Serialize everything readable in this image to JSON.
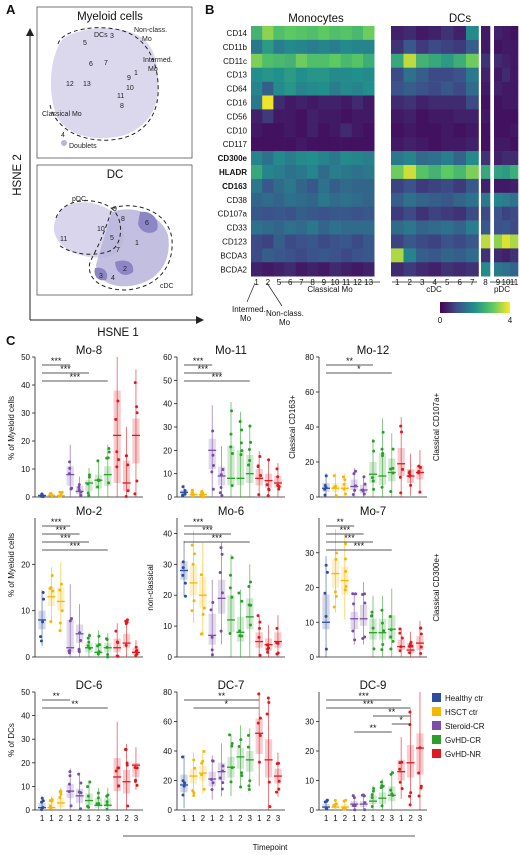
{
  "colors": {
    "Healthy ctr": "#2c4da0",
    "HSCT ctr": "#f5b800",
    "Steroid-CR": "#7a4da8",
    "GvHD-CR": "#2aa02a",
    "GvHD-NR": "#e0181f",
    "tsne_fill": "#b8b4dc",
    "tsne_dark": "#8c86c4"
  },
  "panelA": {
    "label": "A",
    "myeloid": {
      "title": "Myeloid cells",
      "clusters": [
        "5",
        "DCs",
        "3",
        "Non-class.",
        "Mo",
        "Intermed.",
        "Mo",
        "6",
        "7",
        "1",
        "9",
        "10",
        "12",
        "13",
        "11",
        "8",
        "Classical Mo",
        "4",
        "Doublets"
      ]
    },
    "dc": {
      "title": "DC",
      "clusters": [
        "pDC",
        "9",
        "8",
        "6",
        "10",
        "11",
        "5",
        "1",
        "7",
        "2",
        "3",
        "4",
        "cDC"
      ]
    },
    "ylabel": "HSNE 2",
    "xlabel": "HSNE 1"
  },
  "panelB": {
    "label": "B",
    "group_monocytes": "Monocytes",
    "group_dcs": "DCs",
    "markers": [
      "CD14",
      "CD11b",
      "CD11c",
      "CD13",
      "CD64",
      "CD16",
      "CD56",
      "CD10",
      "CD117",
      "CD300e",
      "HLADR",
      "CD163",
      "CD38",
      "CD107a",
      "CD33",
      "CD123",
      "BCDA3",
      "BCDA2"
    ],
    "bold_markers": [
      "CD300e",
      "HLADR",
      "CD163"
    ],
    "mono_cols": [
      "1",
      "2",
      "5",
      "6",
      "7",
      "8",
      "9",
      "10",
      "11",
      "12",
      "13"
    ],
    "dc_cols_a": [
      "1",
      "2",
      "3",
      "4",
      "5",
      "6",
      "7"
    ],
    "dc_cols_b": [
      "8"
    ],
    "dc_cols_c": [
      "9",
      "10",
      "11"
    ],
    "under_classical": "Classical Mo",
    "under_cdc": "cDC",
    "under_pdc": "pDC",
    "under_intermed_1": "Intermed.",
    "under_intermed_2": "Mo",
    "under_nonclass_1": "Non-class.",
    "under_nonclass_2": "Mo",
    "colorbar_min": "0",
    "colorbar_max": "4",
    "mono_values": [
      [
        2.6,
        3.3,
        2.8,
        3.0,
        2.9,
        2.8,
        3.0,
        2.8,
        2.9,
        2.7,
        3.1
      ],
      [
        1.6,
        2.2,
        1.7,
        1.9,
        1.8,
        1.7,
        1.8,
        1.7,
        1.9,
        1.8,
        1.8
      ],
      [
        3.2,
        2.8,
        2.7,
        2.6,
        3.1,
        2.8,
        2.8,
        3.0,
        2.7,
        2.9,
        2.5
      ],
      [
        2.0,
        2.1,
        2.0,
        2.2,
        2.0,
        2.1,
        2.1,
        1.9,
        1.9,
        2.0,
        1.9
      ],
      [
        1.8,
        1.2,
        1.9,
        2.1,
        1.8,
        1.9,
        2.0,
        1.7,
        1.9,
        1.8,
        2.0
      ],
      [
        1.6,
        3.9,
        0.5,
        0.3,
        0.4,
        0.3,
        0.4,
        0.4,
        0.3,
        0.5,
        0.3
      ],
      [
        0.4,
        0.7,
        0.3,
        0.3,
        0.2,
        0.4,
        0.3,
        0.3,
        0.2,
        0.3,
        0.3
      ],
      [
        0.3,
        0.2,
        0.2,
        0.3,
        0.2,
        0.4,
        0.2,
        0.3,
        0.5,
        0.3,
        0.2
      ],
      [
        0.2,
        0.2,
        0.2,
        0.2,
        0.3,
        0.2,
        0.2,
        0.2,
        0.2,
        0.2,
        0.2
      ],
      [
        1.8,
        1.5,
        1.9,
        1.7,
        1.9,
        2.0,
        1.8,
        1.6,
        1.9,
        1.8,
        1.7
      ],
      [
        2.4,
        1.8,
        1.7,
        1.5,
        1.6,
        1.8,
        1.4,
        1.7,
        1.6,
        1.5,
        1.6
      ],
      [
        1.6,
        1.1,
        1.4,
        1.6,
        1.3,
        1.1,
        1.5,
        1.2,
        1.4,
        1.3,
        1.3
      ],
      [
        1.3,
        1.4,
        1.3,
        1.5,
        1.4,
        1.3,
        1.6,
        1.4,
        1.5,
        1.4,
        1.3
      ],
      [
        1.1,
        1.0,
        1.1,
        1.0,
        1.2,
        1.1,
        1.0,
        1.1,
        1.1,
        1.0,
        1.1
      ],
      [
        1.5,
        1.4,
        1.3,
        1.5,
        1.4,
        1.6,
        1.3,
        1.5,
        1.4,
        1.4,
        1.4
      ],
      [
        0.9,
        0.8,
        1.2,
        0.9,
        1.0,
        1.1,
        0.9,
        1.0,
        1.1,
        0.9,
        1.1
      ],
      [
        0.9,
        1.2,
        1.1,
        1.0,
        0.9,
        1.0,
        1.1,
        1.0,
        0.9,
        1.0,
        1.1
      ],
      [
        0.4,
        0.3,
        0.4,
        0.5,
        0.3,
        0.4,
        0.3,
        0.5,
        0.4,
        0.3,
        0.4
      ]
    ],
    "dc_values": [
      [
        0.4,
        0.5,
        0.3,
        0.4,
        0.6,
        0.4,
        1.9,
        0.3,
        0.4,
        0.3,
        0.2
      ],
      [
        0.6,
        1.1,
        0.7,
        0.9,
        0.8,
        0.7,
        1.2,
        0.3,
        0.2,
        0.3,
        0.3
      ],
      [
        2.4,
        3.6,
        2.6,
        2.4,
        2.2,
        2.5,
        3.1,
        0.6,
        0.5,
        0.4,
        0.3
      ],
      [
        0.9,
        1.5,
        1.2,
        0.9,
        0.9,
        1.0,
        1.6,
        0.4,
        0.3,
        0.5,
        0.3
      ],
      [
        1.0,
        1.2,
        1.0,
        0.9,
        1.1,
        0.9,
        1.4,
        0.3,
        0.4,
        0.3,
        0.3
      ],
      [
        0.5,
        0.6,
        0.4,
        0.5,
        0.5,
        0.5,
        0.9,
        0.2,
        0.2,
        0.3,
        0.3
      ],
      [
        0.3,
        0.4,
        0.2,
        0.3,
        0.3,
        0.4,
        0.4,
        0.3,
        0.2,
        0.2,
        0.2
      ],
      [
        0.2,
        0.3,
        0.2,
        0.2,
        0.3,
        0.2,
        0.3,
        0.2,
        0.2,
        0.2,
        0.3
      ],
      [
        0.3,
        0.4,
        0.3,
        0.2,
        0.3,
        0.3,
        0.4,
        0.2,
        0.3,
        0.3,
        0.2
      ],
      [
        1.6,
        1.8,
        1.4,
        1.5,
        1.7,
        1.3,
        1.9,
        0.6,
        0.4,
        0.5,
        0.5
      ],
      [
        3.1,
        3.7,
        2.9,
        2.6,
        3.0,
        2.7,
        3.2,
        2.4,
        2.3,
        2.2,
        2.5
      ],
      [
        0.8,
        1.0,
        0.7,
        0.8,
        0.9,
        0.7,
        1.1,
        0.4,
        0.3,
        0.3,
        0.4
      ],
      [
        1.2,
        1.5,
        1.3,
        1.2,
        1.1,
        1.3,
        1.5,
        1.6,
        1.8,
        1.7,
        1.5
      ],
      [
        0.7,
        0.9,
        0.6,
        0.8,
        0.7,
        0.6,
        0.9,
        0.9,
        1.0,
        0.8,
        0.9
      ],
      [
        1.4,
        1.6,
        1.3,
        1.4,
        1.5,
        1.3,
        1.7,
        1.1,
        1.0,
        1.1,
        0.9
      ],
      [
        0.8,
        1.1,
        0.9,
        0.8,
        1.0,
        0.9,
        1.1,
        3.6,
        3.3,
        3.8,
        3.5
      ],
      [
        3.5,
        1.8,
        1.2,
        1.1,
        1.3,
        1.2,
        1.4,
        0.6,
        0.5,
        0.4,
        0.6
      ],
      [
        0.5,
        0.7,
        0.5,
        0.4,
        0.6,
        0.5,
        0.6,
        1.9,
        1.6,
        1.5,
        1.3
      ]
    ]
  },
  "panelC": {
    "label": "C",
    "legend": [
      "Healthy ctr",
      "HSCT ctr",
      "Steroid-CR",
      "GvHD-CR",
      "GvHD-NR"
    ],
    "xticks": [
      "1",
      "1",
      "2",
      "1",
      "2",
      "1",
      "2",
      "3",
      "1",
      "2",
      "3"
    ],
    "xlabel": "Timepoint",
    "row_ylabels": [
      "% of Myeloid cells",
      "% of Myeloid cells",
      "% of DCs"
    ],
    "panels": [
      {
        "title": "Mo-8",
        "ymax": 50,
        "yticks": [
          0,
          10,
          20,
          30,
          40,
          50
        ],
        "left_label": "",
        "right_label": "",
        "medians": [
          0.5,
          0.5,
          0.5,
          8,
          2,
          5,
          6,
          8,
          22,
          5,
          22
        ],
        "q1": [
          0.3,
          0.3,
          0.3,
          4,
          1,
          2,
          3,
          4,
          5,
          2,
          12
        ],
        "q3": [
          1,
          1,
          1,
          11,
          4,
          6,
          8,
          11,
          38,
          13,
          28
        ],
        "sig": [
          {
            "a": 0,
            "b": 3,
            "t": "***"
          },
          {
            "a": 0,
            "b": 5,
            "t": "***"
          },
          {
            "a": 0,
            "b": 7,
            "t": "***"
          }
        ]
      },
      {
        "title": "Mo-11",
        "ymax": 60,
        "yticks": [
          0,
          10,
          20,
          30,
          40,
          50,
          60
        ],
        "left_label": "",
        "right_label": "",
        "medians": [
          2,
          1,
          1,
          20,
          9,
          8,
          8,
          10,
          8,
          7,
          6
        ],
        "q1": [
          1,
          0.5,
          0.5,
          12,
          5,
          5,
          5,
          6,
          5,
          4,
          4
        ],
        "q3": [
          3,
          2,
          2,
          25,
          13,
          22,
          20,
          18,
          12,
          10,
          9
        ],
        "sig": [
          {
            "a": 0,
            "b": 3,
            "t": "***"
          },
          {
            "a": 0,
            "b": 4,
            "t": "***"
          },
          {
            "a": 0,
            "b": 7,
            "t": "***"
          }
        ]
      },
      {
        "title": "Mo-12",
        "ymax": 80,
        "yticks": [
          0,
          20,
          40,
          60,
          80
        ],
        "left_label": "Classical CD163+",
        "right_label": "Classical CD107a+",
        "medians": [
          5,
          5,
          5,
          6,
          4,
          13,
          12,
          14,
          19,
          12,
          14
        ],
        "q1": [
          3,
          3,
          3,
          4,
          2,
          8,
          7,
          9,
          12,
          8,
          10
        ],
        "q3": [
          8,
          8,
          8,
          10,
          7,
          20,
          25,
          22,
          28,
          16,
          18
        ],
        "sig": [
          {
            "a": 0,
            "b": 5,
            "t": "**"
          },
          {
            "a": 0,
            "b": 7,
            "t": "*"
          }
        ]
      },
      {
        "title": "Mo-2",
        "ymax": 30,
        "yticks": [
          0,
          10,
          20
        ],
        "left_label": "",
        "right_label": "",
        "medians": [
          8,
          13,
          12,
          2,
          5,
          2,
          1,
          2,
          2,
          3,
          1
        ],
        "q1": [
          6,
          11,
          10,
          1,
          3,
          1,
          0.5,
          1,
          1,
          2,
          0.5
        ],
        "q3": [
          10,
          15,
          15,
          8,
          7,
          3,
          3,
          3,
          4,
          5,
          2
        ],
        "sig": [
          {
            "a": 0,
            "b": 3,
            "t": "***"
          },
          {
            "a": 0,
            "b": 4,
            "t": "***"
          },
          {
            "a": 0,
            "b": 5,
            "t": "***"
          },
          {
            "a": 0,
            "b": 7,
            "t": "***"
          }
        ]
      },
      {
        "title": "Mo-6",
        "ymax": 45,
        "yticks": [
          0,
          10,
          20,
          30,
          40
        ],
        "left_label": "non-classical",
        "right_label": "",
        "medians": [
          28,
          24,
          20,
          7,
          19,
          12,
          8,
          13,
          5,
          4,
          5
        ],
        "q1": [
          25,
          20,
          16,
          4,
          14,
          8,
          5,
          9,
          3,
          2,
          3
        ],
        "q3": [
          31,
          30,
          26,
          14,
          25,
          20,
          13,
          19,
          8,
          6,
          8
        ],
        "sig": [
          {
            "a": 0,
            "b": 3,
            "t": "***"
          },
          {
            "a": 0,
            "b": 5,
            "t": "***"
          },
          {
            "a": 0,
            "b": 7,
            "t": "***"
          }
        ]
      },
      {
        "title": "Mo-7",
        "ymax": 40,
        "yticks": [
          0,
          10,
          20,
          30
        ],
        "left_label": "",
        "right_label": "Classical CD300e+",
        "medians": [
          10,
          24,
          22,
          11,
          11,
          7,
          7,
          8,
          3,
          2,
          4
        ],
        "q1": [
          8,
          20,
          18,
          8,
          9,
          5,
          5,
          5,
          2,
          1,
          2
        ],
        "q3": [
          18,
          28,
          26,
          13,
          15,
          11,
          11,
          12,
          5,
          4,
          6
        ],
        "sig": [
          {
            "a": 0,
            "b": 3,
            "t": "**"
          },
          {
            "a": 0,
            "b": 4,
            "t": "***"
          },
          {
            "a": 0,
            "b": 5,
            "t": "***"
          },
          {
            "a": 0,
            "b": 7,
            "t": "***"
          }
        ]
      },
      {
        "title": "DC-6",
        "ymax": 50,
        "yticks": [
          0,
          10,
          20,
          30,
          40,
          50
        ],
        "left_label": "",
        "right_label": "",
        "medians": [
          1,
          1,
          3,
          8,
          6,
          4,
          2,
          2,
          14,
          12,
          19
        ],
        "q1": [
          0.5,
          0.5,
          1,
          5,
          3,
          2,
          1,
          1,
          8,
          7,
          14
        ],
        "q3": [
          3,
          3,
          5,
          11,
          9,
          7,
          5,
          5,
          22,
          17,
          20
        ],
        "sig": [
          {
            "a": 0,
            "b": 3,
            "t": "**"
          },
          {
            "a": 0,
            "b": 7,
            "t": "**"
          }
        ]
      },
      {
        "title": "DC-7",
        "ymax": 80,
        "yticks": [
          0,
          20,
          40,
          60,
          80
        ],
        "left_label": "",
        "right_label": "",
        "medians": [
          17,
          23,
          25,
          21,
          26,
          29,
          36,
          34,
          52,
          34,
          23
        ],
        "q1": [
          12,
          18,
          20,
          16,
          20,
          22,
          28,
          26,
          38,
          22,
          18
        ],
        "q3": [
          24,
          28,
          30,
          26,
          32,
          36,
          42,
          40,
          62,
          48,
          28
        ],
        "sig": [
          {
            "a": 0,
            "b": 8,
            "t": "**"
          },
          {
            "a": 1,
            "b": 8,
            "t": "*"
          }
        ]
      },
      {
        "title": "DC-9",
        "ymax": 40,
        "yticks": [
          0,
          10,
          20,
          30
        ],
        "left_label": "",
        "right_label": "",
        "medians": [
          1,
          1,
          1,
          2,
          2,
          3,
          4,
          5,
          13,
          16,
          21
        ],
        "q1": [
          0.5,
          0.5,
          0.5,
          1,
          1,
          2,
          2,
          3,
          10,
          11,
          12
        ],
        "q3": [
          2,
          2,
          2,
          3,
          3,
          5,
          6,
          8,
          17,
          22,
          26
        ],
        "sig": [
          {
            "a": 0,
            "b": 8,
            "t": "***"
          },
          {
            "a": 0,
            "b": 9,
            "t": "***"
          },
          {
            "a": 5,
            "b": 9,
            "t": "**"
          },
          {
            "a": 7,
            "b": 9,
            "t": "*"
          },
          {
            "a": 3,
            "b": 7,
            "t": "**"
          }
        ]
      }
    ]
  }
}
